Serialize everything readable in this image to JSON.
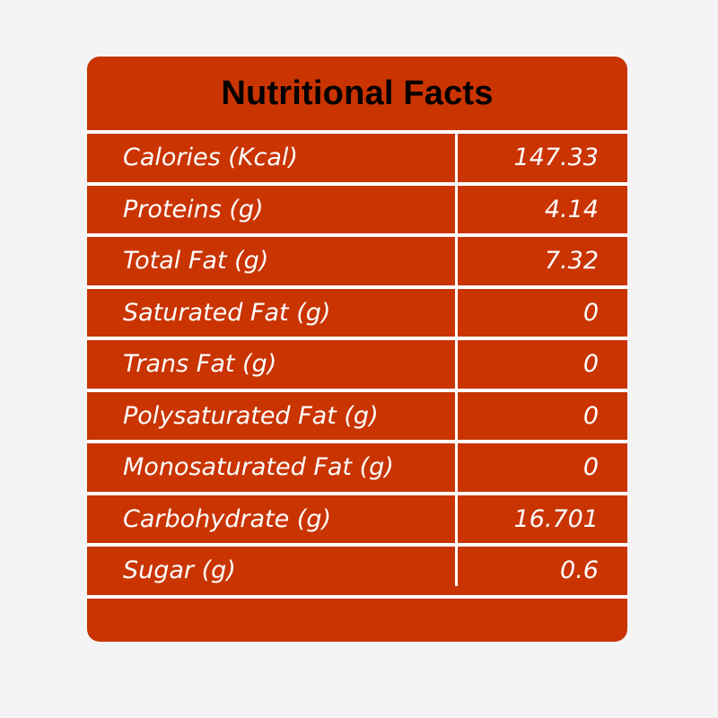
{
  "title": "Nutritional Facts",
  "rows": [
    {
      "label": "Calories (Kcal)",
      "value": "147.33"
    },
    {
      "label": "Proteins (g)",
      "value": "4.14"
    },
    {
      "label": "Total Fat (g)",
      "value": "7.32"
    },
    {
      "label": "Saturated Fat (g)",
      "value": "0"
    },
    {
      "label": "Trans Fat (g)",
      "value": "0"
    },
    {
      "label": "Polysaturated Fat (g)",
      "value": "0"
    },
    {
      "label": "Monosaturated Fat (g)",
      "value": "0"
    },
    {
      "label": "Carbohydrate (g)",
      "value": "16.701"
    },
    {
      "label": "Sugar (g)",
      "value": "0.6"
    }
  ],
  "colors": {
    "page_background": "#f4f4f4",
    "card_background": "#c93400",
    "title_text": "#000000",
    "row_text": "#ffffff",
    "divider": "#ffffff"
  }
}
